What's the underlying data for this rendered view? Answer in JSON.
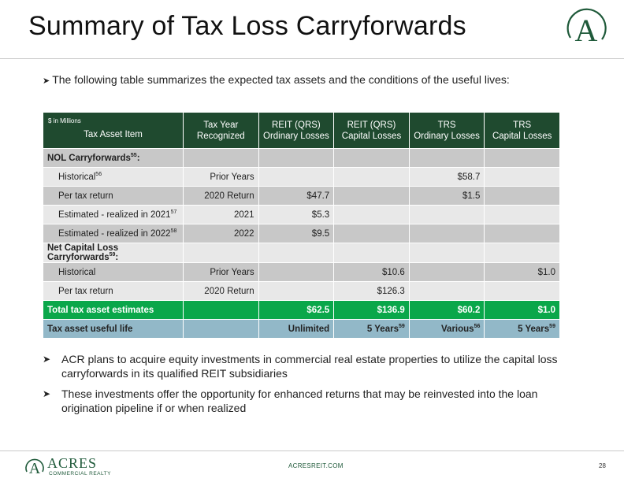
{
  "page": {
    "title": "Summary of Tax Loss Carryforwards",
    "intro": "The following table summarizes the expected tax assets and the conditions of the useful lives:",
    "footer_site": "ACRESREIT.COM",
    "page_number": "28",
    "brand_name": "ACRES",
    "brand_sub": "COMMERCIAL REALTY",
    "logo_letter": "A"
  },
  "colors": {
    "header_green": "#1f4a2f",
    "total_green": "#0aa74a",
    "useful_blue": "#92b8c8",
    "row_light": "#e8e8e8",
    "row_dark": "#c8c8c8"
  },
  "table": {
    "units": "$ in Millions",
    "headers": {
      "c0": "Tax Asset Item",
      "c1a": "Tax Year",
      "c1b": "Recognized",
      "c2a": "REIT (QRS)",
      "c2b": "Ordinary Losses",
      "c3a": "REIT (QRS)",
      "c3b": "Capital Losses",
      "c4a": "TRS",
      "c4b": "Ordinary Losses",
      "c5a": "TRS",
      "c5b": "Capital Losses"
    },
    "rows": {
      "nol": {
        "label": "NOL Carryforwards",
        "sup": "55",
        "suffix": ":"
      },
      "historical": {
        "label": "Historical",
        "sup": "56",
        "year": "Prior Years",
        "trs_ord": "$58.7"
      },
      "per_tax": {
        "label": "Per tax return",
        "year": "2020 Return",
        "reit_ord": "$47.7",
        "trs_ord": "$1.5"
      },
      "est2021": {
        "label": "Estimated - realized in 2021",
        "sup": "57",
        "year": "2021",
        "reit_ord": "$5.3"
      },
      "est2022": {
        "label": "Estimated - realized in 2022",
        "sup": "58",
        "year": "2022",
        "reit_ord": "$9.5"
      },
      "ncl": {
        "label": "Net Capital Loss Carryforwards",
        "sup": "59",
        "suffix": ":"
      },
      "hist2": {
        "label": "Historical",
        "year": "Prior Years",
        "reit_cap": "$10.6",
        "trs_cap": "$1.0"
      },
      "per_tax2": {
        "label": "Per tax return",
        "year": "2020 Return",
        "reit_cap": "$126.3"
      },
      "total": {
        "label": "Total tax asset estimates",
        "reit_ord": "$62.5",
        "reit_cap": "$136.9",
        "trs_ord": "$60.2",
        "trs_cap": "$1.0"
      },
      "useful": {
        "label": "Tax asset useful life",
        "reit_ord": "Unlimited",
        "reit_cap": "5 Years",
        "reit_cap_sup": "59",
        "trs_ord": "Various",
        "trs_ord_sup": "56",
        "trs_cap": "5 Years",
        "trs_cap_sup": "59"
      }
    }
  },
  "bullets": [
    "ACR plans to acquire equity investments in commercial real estate properties to utilize the capital loss carryforwards in its qualified REIT subsidiaries",
    "These investments offer the opportunity for enhanced returns that may be reinvested into the loan origination pipeline if or when realized"
  ]
}
